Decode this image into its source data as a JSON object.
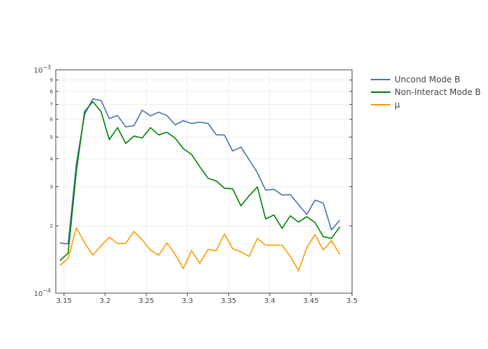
{
  "chart_data": {
    "type": "line",
    "title": "",
    "xlabel": "",
    "ylabel": "",
    "x_scale": "linear",
    "y_scale": "log",
    "xlim": [
      3.14,
      3.5
    ],
    "ylim": [
      0.0001,
      0.001
    ],
    "x_ticks": [
      {
        "value": 3.15,
        "label": "3.15"
      },
      {
        "value": 3.2,
        "label": "3.2"
      },
      {
        "value": 3.25,
        "label": "3.25"
      },
      {
        "value": 3.3,
        "label": "3.3"
      },
      {
        "value": 3.35,
        "label": "3.35"
      },
      {
        "value": 3.4,
        "label": "3.4"
      },
      {
        "value": 3.45,
        "label": "3.45"
      },
      {
        "value": 3.5,
        "label": "3.5"
      }
    ],
    "y_major_ticks": [
      {
        "value": 0.0001,
        "base": "10",
        "exp": "−4"
      },
      {
        "value": 0.001,
        "base": "10",
        "exp": "−3"
      }
    ],
    "y_minor_ticks": [
      {
        "value": 0.0002,
        "label": "2"
      },
      {
        "value": 0.0003,
        "label": "3"
      },
      {
        "value": 0.0004,
        "label": "4"
      },
      {
        "value": 0.0005,
        "label": "5"
      },
      {
        "value": 0.0006,
        "label": "6"
      },
      {
        "value": 0.0007,
        "label": "7"
      },
      {
        "value": 0.0008,
        "label": "8"
      },
      {
        "value": 0.0009,
        "label": "9"
      }
    ],
    "grid": true,
    "legend_position": "top-right",
    "x": [
      3.145,
      3.155,
      3.165,
      3.175,
      3.185,
      3.195,
      3.205,
      3.215,
      3.225,
      3.235,
      3.245,
      3.255,
      3.265,
      3.275,
      3.285,
      3.295,
      3.305,
      3.315,
      3.325,
      3.335,
      3.345,
      3.355,
      3.365,
      3.375,
      3.385,
      3.395,
      3.405,
      3.415,
      3.425,
      3.435,
      3.445,
      3.455,
      3.465,
      3.475,
      3.485
    ],
    "series": [
      {
        "name": "Uncond Mode B",
        "color": "#4c72b0",
        "values": [
          0.000168,
          0.000166,
          0.00038,
          0.00063,
          0.00074,
          0.00073,
          0.000605,
          0.000625,
          0.000555,
          0.000562,
          0.00066,
          0.000622,
          0.000646,
          0.000625,
          0.000567,
          0.000592,
          0.000575,
          0.000583,
          0.000575,
          0.000512,
          0.00051,
          0.000433,
          0.000451,
          0.000395,
          0.000346,
          0.000289,
          0.000292,
          0.000275,
          0.000276,
          0.000249,
          0.000225,
          0.000261,
          0.000253,
          0.000192,
          0.000212
        ]
      },
      {
        "name": "Non-Interact Mode B",
        "color": "#008000",
        "values": [
          0.00014,
          0.000151,
          0.00035,
          0.00065,
          0.00072,
          0.00065,
          0.000487,
          0.000551,
          0.000468,
          0.000505,
          0.000495,
          0.000551,
          0.000511,
          0.000525,
          0.000495,
          0.000443,
          0.000418,
          0.000368,
          0.000327,
          0.000318,
          0.000295,
          0.000293,
          0.000246,
          0.000273,
          0.000299,
          0.000215,
          0.000224,
          0.000195,
          0.000222,
          0.000208,
          0.00022,
          0.000207,
          0.000179,
          0.000176,
          0.000198
        ]
      },
      {
        "name": "μ",
        "color": "#ff9900",
        "values": [
          0.000133,
          0.000143,
          0.000196,
          0.000168,
          0.000148,
          0.000163,
          0.000178,
          0.000167,
          0.000167,
          0.000189,
          0.000173,
          0.000156,
          0.000148,
          0.000168,
          0.000149,
          0.000129,
          0.000155,
          0.000136,
          0.000157,
          0.000155,
          0.000184,
          0.000158,
          0.000153,
          0.000146,
          0.000176,
          0.000164,
          0.000164,
          0.000164,
          0.000146,
          0.000126,
          0.00016,
          0.000183,
          0.000156,
          0.000172,
          0.000149
        ]
      }
    ]
  }
}
